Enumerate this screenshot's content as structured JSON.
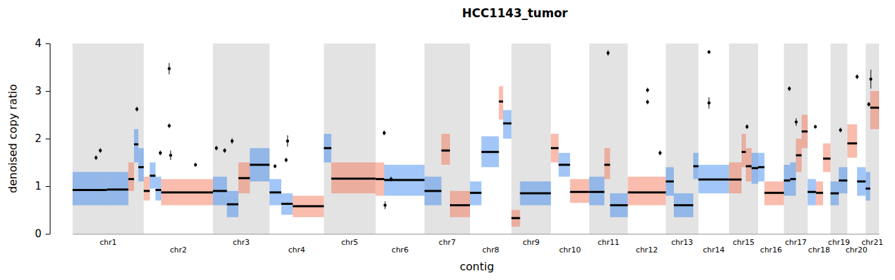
{
  "chart_data": {
    "type": "copy_ratio",
    "title": "HCC1143_tumor",
    "x_label": "contig",
    "y_label": "denoised copy ratio",
    "xlim": [
      0,
      2821
    ],
    "ylim": [
      0,
      4
    ],
    "yticks": [
      0,
      1,
      2,
      3,
      4
    ],
    "contigs": [
      {
        "name": "chr1",
        "start": 0,
        "end": 249
      },
      {
        "name": "chr2",
        "start": 249,
        "end": 491
      },
      {
        "name": "chr3",
        "start": 491,
        "end": 689
      },
      {
        "name": "chr4",
        "start": 689,
        "end": 879
      },
      {
        "name": "chr5",
        "start": 879,
        "end": 1060
      },
      {
        "name": "chr6",
        "start": 1060,
        "end": 1231
      },
      {
        "name": "chr7",
        "start": 1231,
        "end": 1390
      },
      {
        "name": "chr8",
        "start": 1390,
        "end": 1535
      },
      {
        "name": "chr9",
        "start": 1535,
        "end": 1673
      },
      {
        "name": "chr10",
        "start": 1673,
        "end": 1807
      },
      {
        "name": "chr11",
        "start": 1807,
        "end": 1942
      },
      {
        "name": "chr12",
        "start": 1942,
        "end": 2075
      },
      {
        "name": "chr13",
        "start": 2075,
        "end": 2189
      },
      {
        "name": "chr14",
        "start": 2189,
        "end": 2296
      },
      {
        "name": "chr15",
        "start": 2296,
        "end": 2398
      },
      {
        "name": "chr16",
        "start": 2398,
        "end": 2488
      },
      {
        "name": "chr17",
        "start": 2488,
        "end": 2571
      },
      {
        "name": "chr18",
        "start": 2571,
        "end": 2651
      },
      {
        "name": "chr19",
        "start": 2651,
        "end": 2710
      },
      {
        "name": "chr20",
        "start": 2710,
        "end": 2774
      },
      {
        "name": "chr21",
        "start": 2774,
        "end": 2821
      }
    ],
    "segments": {
      "start": [
        0,
        120,
        195,
        215,
        230,
        249,
        270,
        290,
        310,
        491,
        540,
        580,
        620,
        689,
        730,
        770,
        879,
        905,
        1060,
        1090,
        1231,
        1290,
        1320,
        1390,
        1430,
        1491,
        1506,
        1535,
        1565,
        1673,
        1700,
        1740,
        1807,
        1860,
        1880,
        1942,
        2075,
        2103,
        2171,
        2189,
        2296,
        2340,
        2355,
        2375,
        2398,
        2420,
        2488,
        2510,
        2530,
        2550,
        2571,
        2600,
        2625,
        2651,
        2680,
        2710,
        2744,
        2774,
        2790
      ],
      "end": [
        120,
        195,
        215,
        230,
        249,
        270,
        290,
        310,
        491,
        540,
        580,
        620,
        689,
        730,
        770,
        879,
        905,
        1060,
        1090,
        1231,
        1290,
        1320,
        1390,
        1430,
        1491,
        1506,
        1535,
        1565,
        1673,
        1700,
        1740,
        1807,
        1860,
        1880,
        1942,
        2075,
        2103,
        2171,
        2189,
        2296,
        2340,
        2355,
        2375,
        2398,
        2420,
        2488,
        2510,
        2530,
        2550,
        2571,
        2600,
        2625,
        2651,
        2680,
        2710,
        2744,
        2774,
        2790,
        2821
      ],
      "values": [
        0.92,
        0.93,
        1.15,
        1.88,
        1.4,
        0.9,
        1.22,
        0.92,
        0.87,
        0.9,
        0.62,
        1.17,
        1.45,
        0.87,
        0.63,
        0.58,
        1.8,
        1.16,
        1.15,
        1.13,
        0.9,
        1.75,
        0.6,
        0.86,
        1.72,
        2.78,
        2.32,
        0.33,
        0.85,
        1.8,
        1.45,
        0.88,
        0.88,
        1.45,
        0.6,
        0.87,
        1.1,
        0.6,
        1.42,
        1.14,
        1.14,
        1.72,
        1.42,
        1.38,
        1.4,
        0.86,
        1.12,
        1.15,
        1.65,
        2.15,
        0.88,
        0.86,
        1.58,
        0.85,
        1.12,
        1.9,
        1.1,
        0.95,
        2.65
      ],
      "lo": [
        0.6,
        0.6,
        0.9,
        1.5,
        1.1,
        0.7,
        0.95,
        0.7,
        0.6,
        0.6,
        0.35,
        0.85,
        1.1,
        0.6,
        0.4,
        0.35,
        1.5,
        0.85,
        0.8,
        0.8,
        0.6,
        1.45,
        0.35,
        0.6,
        1.4,
        2.4,
        2.0,
        0.15,
        0.6,
        1.5,
        1.2,
        0.65,
        0.6,
        1.15,
        0.35,
        0.6,
        0.8,
        0.35,
        1.15,
        0.85,
        0.85,
        1.4,
        1.1,
        1.05,
        1.1,
        0.6,
        0.8,
        0.8,
        1.3,
        1.8,
        0.6,
        0.6,
        1.3,
        0.6,
        0.85,
        1.6,
        0.8,
        0.7,
        2.2
      ],
      "hi": [
        1.3,
        1.3,
        1.5,
        2.2,
        1.8,
        1.2,
        1.5,
        1.2,
        1.15,
        1.2,
        0.9,
        1.5,
        1.8,
        1.15,
        0.85,
        0.8,
        2.1,
        1.5,
        1.5,
        1.45,
        1.2,
        2.1,
        0.9,
        1.1,
        2.05,
        3.1,
        2.6,
        0.5,
        1.1,
        2.1,
        1.7,
        1.15,
        1.2,
        1.8,
        0.85,
        1.2,
        1.4,
        0.85,
        1.7,
        1.45,
        1.5,
        2.1,
        1.8,
        1.7,
        1.7,
        1.1,
        1.45,
        1.5,
        2.0,
        2.5,
        1.15,
        1.1,
        1.9,
        1.1,
        1.4,
        2.3,
        1.4,
        1.3,
        3.0
      ],
      "colors": [
        "#2f80ed",
        "#2f80ed",
        "#f26b4a",
        "#2f80ed",
        "#2f80ed",
        "#f26b4a",
        "#2f80ed",
        "#2f80ed",
        "#f26b4a",
        "#2f80ed",
        "#2f80ed",
        "#f26b4a",
        "#2f80ed",
        "#2f80ed",
        "#2f80ed",
        "#f26b4a",
        "#2f80ed",
        "#f26b4a",
        "#f26b4a",
        "#2f80ed",
        "#2f80ed",
        "#f26b4a",
        "#f26b4a",
        "#2f80ed",
        "#2f80ed",
        "#f26b4a",
        "#2f80ed",
        "#f26b4a",
        "#2f80ed",
        "#f26b4a",
        "#2f80ed",
        "#f26b4a",
        "#2f80ed",
        "#f26b4a",
        "#2f80ed",
        "#f26b4a",
        "#2f80ed",
        "#2f80ed",
        "#2f80ed",
        "#2f80ed",
        "#f26b4a",
        "#f26b4a",
        "#f26b4a",
        "#2f80ed",
        "#2f80ed",
        "#f26b4a",
        "#2f80ed",
        "#2f80ed",
        "#f26b4a",
        "#f26b4a",
        "#2f80ed",
        "#f26b4a",
        "#f26b4a",
        "#2f80ed",
        "#2f80ed",
        "#f26b4a",
        "#2f80ed",
        "#2f80ed",
        "#f26b4a"
      ]
    },
    "points": {
      "x": [
        82,
        97,
        225,
        307,
        338,
        338,
        343,
        430,
        503,
        532,
        558,
        708,
        747,
        752,
        1090,
        1093,
        1114,
        1873,
        2011,
        2011,
        2055,
        2226,
        2226,
        2359,
        2507,
        2531,
        2598,
        2686,
        2744,
        2785,
        2792
      ],
      "values": [
        1.6,
        1.75,
        2.62,
        1.7,
        3.47,
        2.27,
        1.65,
        1.45,
        1.8,
        1.75,
        1.95,
        1.42,
        1.55,
        1.95,
        2.12,
        0.6,
        1.15,
        3.8,
        3.02,
        2.77,
        1.7,
        3.82,
        2.75,
        2.25,
        3.05,
        2.35,
        2.25,
        2.18,
        3.3,
        2.72,
        3.25
      ],
      "error": [
        0.05,
        0.05,
        0.05,
        0.05,
        0.12,
        0.05,
        0.1,
        0.04,
        0.05,
        0.05,
        0.06,
        0.04,
        0.05,
        0.12,
        0.05,
        0.08,
        0.05,
        0.06,
        0.05,
        0.05,
        0.05,
        0.04,
        0.12,
        0.05,
        0.05,
        0.08,
        0.04,
        0.05,
        0.05,
        0.05,
        0.2
      ]
    }
  }
}
